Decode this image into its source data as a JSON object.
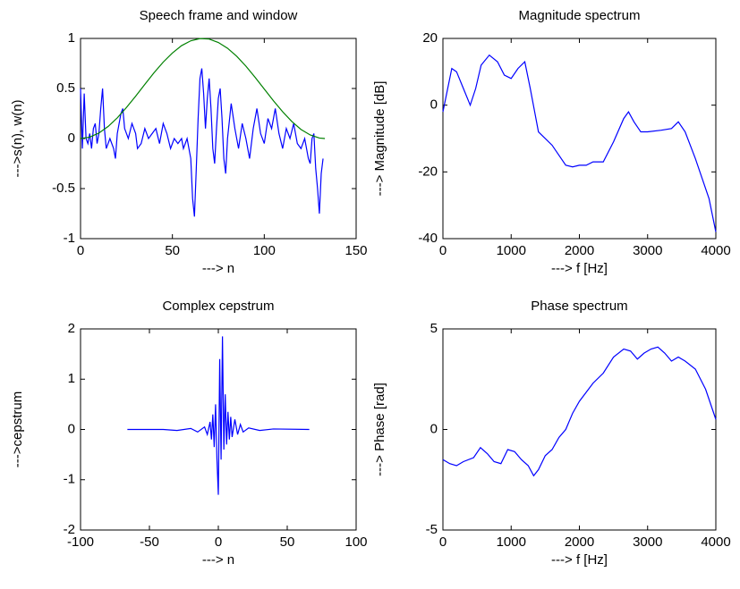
{
  "chart_data": [
    {
      "type": "line",
      "title": "Speech frame and window",
      "xlabel": "---> n",
      "ylabel": "--->s(n), w(n)",
      "xlim": [
        0,
        150
      ],
      "ylim": [
        -1,
        1
      ],
      "xticks": [
        0,
        50,
        100,
        150
      ],
      "yticks": [
        -1,
        -0.5,
        0,
        0.5,
        1
      ],
      "series": [
        {
          "color": "#0000ff",
          "x": [
            0,
            1,
            2,
            3,
            4,
            5,
            6,
            7,
            8,
            9,
            10,
            11,
            12,
            13,
            14,
            16,
            18,
            19,
            20,
            22,
            23,
            24,
            26,
            28,
            30,
            31,
            33,
            35,
            37,
            39,
            41,
            43,
            45,
            47,
            49,
            51,
            53,
            55,
            56,
            58,
            60,
            61,
            62,
            63,
            64,
            65,
            66,
            67,
            68,
            69,
            70,
            71,
            72,
            73,
            74,
            75,
            76,
            77,
            78,
            79,
            80,
            82,
            84,
            86,
            88,
            90,
            92,
            94,
            96,
            98,
            100,
            102,
            104,
            106,
            108,
            110,
            112,
            114,
            116,
            118,
            120,
            122,
            124,
            125,
            126,
            127,
            128,
            129,
            130,
            131,
            132
          ],
          "values": [
            0.5,
            -0.1,
            0.45,
            0.0,
            -0.05,
            0.05,
            -0.1,
            0.1,
            0.15,
            -0.05,
            0.05,
            0.3,
            0.5,
            0.1,
            -0.1,
            0.0,
            -0.1,
            -0.2,
            0.05,
            0.25,
            0.3,
            0.1,
            0.0,
            0.15,
            0.05,
            -0.1,
            -0.05,
            0.1,
            0.0,
            0.05,
            0.1,
            -0.05,
            0.15,
            0.05,
            -0.1,
            0.0,
            -0.05,
            0.0,
            -0.1,
            0.0,
            -0.2,
            -0.6,
            -0.78,
            -0.3,
            0.2,
            0.6,
            0.7,
            0.45,
            0.1,
            0.4,
            0.6,
            0.3,
            -0.1,
            -0.25,
            0.1,
            0.4,
            0.5,
            0.2,
            -0.2,
            -0.35,
            0.0,
            0.35,
            0.1,
            -0.1,
            0.15,
            0.0,
            -0.2,
            0.1,
            0.3,
            0.05,
            -0.05,
            0.2,
            0.1,
            0.3,
            0.05,
            -0.1,
            0.1,
            0.0,
            0.15,
            -0.05,
            -0.1,
            0.0,
            -0.2,
            -0.25,
            0.0,
            0.05,
            -0.3,
            -0.5,
            -0.75,
            -0.35,
            -0.2
          ]
        },
        {
          "color": "#008000",
          "x": [
            0,
            5,
            10,
            15,
            20,
            25,
            30,
            35,
            40,
            45,
            50,
            55,
            60,
            65,
            70,
            75,
            80,
            85,
            90,
            95,
            100,
            105,
            110,
            115,
            120,
            125,
            130,
            133
          ],
          "values": [
            0,
            0.0139,
            0.0548,
            0.1204,
            0.2064,
            0.3099,
            0.4235,
            0.5413,
            0.657,
            0.7636,
            0.8546,
            0.9281,
            0.9765,
            0.9986,
            0.9937,
            0.9596,
            0.902,
            0.8219,
            0.7232,
            0.6114,
            0.4941,
            0.3777,
            0.2677,
            0.1702,
            0.0904,
            0.0361,
            0.005,
            0
          ]
        }
      ]
    },
    {
      "type": "line",
      "title": "Magnitude spectrum",
      "xlabel": "---> f [Hz]",
      "ylabel": "---> Magnitude [dB]",
      "xlim": [
        0,
        4000
      ],
      "ylim": [
        -40,
        20
      ],
      "xticks": [
        0,
        1000,
        2000,
        3000,
        4000
      ],
      "yticks": [
        -40,
        -20,
        0,
        20
      ],
      "series": [
        {
          "color": "#0000ff",
          "x": [
            0,
            50,
            130,
            200,
            300,
            400,
            480,
            560,
            680,
            800,
            900,
            1000,
            1100,
            1200,
            1280,
            1400,
            1600,
            1800,
            1900,
            2000,
            2100,
            2200,
            2350,
            2500,
            2650,
            2720,
            2800,
            2900,
            3000,
            3200,
            3350,
            3450,
            3550,
            3700,
            3800,
            3900,
            4000
          ],
          "values": [
            -2,
            3,
            11,
            10,
            5,
            0,
            5,
            12,
            15,
            13,
            9,
            8,
            11,
            13,
            5,
            -8,
            -12,
            -18,
            -18.5,
            -18,
            -18,
            -17,
            -17,
            -11,
            -4,
            -2,
            -5,
            -8,
            -8,
            -7.5,
            -7,
            -5,
            -8,
            -16,
            -22,
            -28,
            -38
          ]
        }
      ]
    },
    {
      "type": "line",
      "title": "Complex cepstrum",
      "xlabel": "---> n",
      "ylabel": "--->cepstrum",
      "xlim": [
        -100,
        100
      ],
      "ylim": [
        -2,
        2
      ],
      "xticks": [
        -100,
        -50,
        0,
        50,
        100
      ],
      "yticks": [
        -2,
        -1,
        0,
        1,
        2
      ],
      "series": [
        {
          "color": "#0000ff",
          "x": [
            -66,
            -40,
            -30,
            -20,
            -15,
            -10,
            -8,
            -6,
            -5,
            -4,
            -3,
            -2,
            -1,
            0,
            1,
            2,
            3,
            4,
            5,
            6,
            7,
            8,
            9,
            10,
            12,
            14,
            16,
            18,
            22,
            30,
            40,
            66
          ],
          "values": [
            0,
            0,
            -0.02,
            0.02,
            -0.05,
            0.05,
            -0.1,
            0.15,
            -0.2,
            0.3,
            -0.35,
            0.5,
            -0.6,
            -1.3,
            1.4,
            -0.6,
            1.85,
            -0.4,
            0.7,
            -0.3,
            0.35,
            -0.2,
            0.25,
            -0.15,
            0.2,
            -0.1,
            0.1,
            -0.05,
            0.03,
            -0.02,
            0.01,
            0
          ]
        }
      ]
    },
    {
      "type": "line",
      "title": "Phase spectrum",
      "xlabel": "---> f [Hz]",
      "ylabel": "---> Phase [rad]",
      "xlim": [
        0,
        4000
      ],
      "ylim": [
        -5,
        5
      ],
      "xticks": [
        0,
        1000,
        2000,
        3000,
        4000
      ],
      "yticks": [
        -5,
        0,
        5
      ],
      "series": [
        {
          "color": "#0000ff",
          "x": [
            0,
            100,
            200,
            300,
            450,
            550,
            650,
            750,
            850,
            950,
            1050,
            1150,
            1250,
            1330,
            1400,
            1500,
            1600,
            1700,
            1800,
            1900,
            2000,
            2200,
            2350,
            2500,
            2650,
            2750,
            2850,
            2950,
            3050,
            3150,
            3250,
            3350,
            3450,
            3550,
            3700,
            3850,
            3950,
            4000
          ],
          "values": [
            -1.5,
            -1.7,
            -1.8,
            -1.6,
            -1.4,
            -0.9,
            -1.2,
            -1.6,
            -1.7,
            -1.0,
            -1.1,
            -1.5,
            -1.8,
            -2.3,
            -2.0,
            -1.3,
            -1.0,
            -0.4,
            0.0,
            0.8,
            1.4,
            2.3,
            2.8,
            3.6,
            4.0,
            3.9,
            3.5,
            3.8,
            4.0,
            4.1,
            3.8,
            3.4,
            3.6,
            3.4,
            3.0,
            2.0,
            1.0,
            0.5
          ]
        }
      ]
    }
  ]
}
